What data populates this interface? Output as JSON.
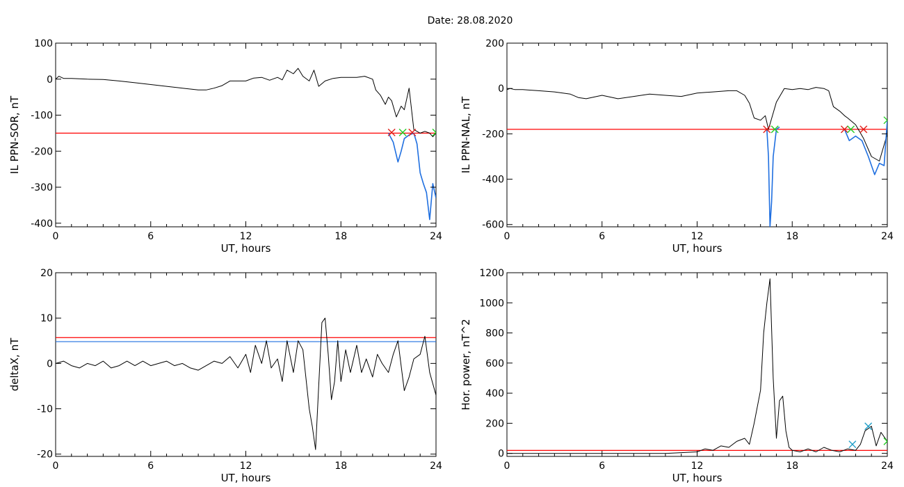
{
  "title": "Date:  28.08.2020",
  "colors": {
    "threshold_red": "#ff0000",
    "threshold_blue": "#1f6fe0",
    "line": "#000000",
    "marker_red": "#e0201a",
    "marker_green": "#22cc22"
  },
  "chart_data": [
    {
      "type": "line",
      "id": "sor",
      "ylabel": "IL PPN-SOR, nT",
      "xlabel": "UT, hours",
      "xlim": [
        0,
        24
      ],
      "ylim": [
        -410,
        100
      ],
      "xticks": [
        0,
        6,
        12,
        18,
        24
      ],
      "yticks": [
        100,
        0,
        -100,
        -200,
        -300,
        -400
      ],
      "threshold": {
        "value": -150,
        "color": "#ff0000"
      },
      "series": [
        {
          "x": [
            0,
            0.2,
            0.5,
            1,
            2,
            3,
            4,
            5,
            6,
            7,
            8,
            9,
            9.5,
            10,
            10.5,
            11,
            11.5,
            12,
            12.5,
            13,
            13.5,
            14,
            14.3,
            14.6,
            15,
            15.3,
            15.6,
            16,
            16.3,
            16.6,
            17,
            17.5,
            18,
            18.5,
            19,
            19.5,
            20,
            20.2,
            20.5,
            20.8,
            21,
            21.2,
            21.5,
            21.8,
            22,
            22.3,
            22.6,
            23,
            23.3,
            23.6,
            23.8,
            24
          ],
          "y": [
            0,
            8,
            2,
            2,
            0,
            -1,
            -5,
            -10,
            -15,
            -20,
            -25,
            -30,
            -30,
            -25,
            -18,
            -5,
            -5,
            -5,
            3,
            5,
            -3,
            5,
            -2,
            25,
            15,
            30,
            8,
            -5,
            25,
            -20,
            -5,
            2,
            5,
            5,
            5,
            8,
            0,
            -30,
            -45,
            -70,
            -50,
            -60,
            -105,
            -75,
            -85,
            -25,
            -140,
            -150,
            -145,
            -150,
            -160,
            -150
          ]
        },
        {
          "x": [
            21,
            21.3,
            21.6,
            21.8,
            22,
            22.3,
            22.6,
            22.8,
            23,
            23.2,
            23.4,
            23.6,
            23.8,
            24
          ],
          "y": [
            -150,
            -175,
            -230,
            -200,
            -165,
            -155,
            -150,
            -180,
            -260,
            -290,
            -315,
            -390,
            -290,
            -330
          ],
          "color": "#1f6fe0"
        }
      ],
      "markers": [
        {
          "x": 21.2,
          "y": -148,
          "color": "#e0201a"
        },
        {
          "x": 21.9,
          "y": -148,
          "color": "#22cc22"
        },
        {
          "x": 22.5,
          "y": -148,
          "color": "#e0201a"
        },
        {
          "x": 24,
          "y": -148,
          "color": "#22cc22"
        }
      ]
    },
    {
      "type": "line",
      "id": "nal",
      "ylabel": "IL PPN-NAL, nT",
      "xlabel": "UT, hours",
      "xlim": [
        0,
        24
      ],
      "ylim": [
        -610,
        200
      ],
      "xticks": [
        0,
        6,
        12,
        18,
        24
      ],
      "yticks": [
        200,
        0,
        -200,
        -400,
        -600
      ],
      "threshold": {
        "value": -180,
        "color": "#ff0000"
      },
      "series": [
        {
          "x": [
            0,
            0.2,
            0.5,
            1,
            2,
            3,
            4,
            4.5,
            5,
            6,
            7,
            8,
            9,
            10,
            11,
            12,
            13,
            14,
            14.5,
            15,
            15.3,
            15.6,
            16,
            16.3,
            16.5,
            17,
            17.5,
            18,
            18.5,
            19,
            19.5,
            20,
            20.3,
            20.6,
            21,
            21.3,
            21.5,
            22,
            22.5,
            23,
            23.5,
            24
          ],
          "y": [
            -5,
            0,
            -5,
            -5,
            -10,
            -15,
            -25,
            -40,
            -45,
            -30,
            -45,
            -35,
            -25,
            -30,
            -35,
            -20,
            -15,
            -10,
            -10,
            -30,
            -65,
            -130,
            -140,
            -120,
            -180,
            -60,
            0,
            -5,
            0,
            -5,
            5,
            0,
            -10,
            -80,
            -100,
            -120,
            -130,
            -160,
            -220,
            -300,
            -320,
            -200
          ]
        },
        {
          "x": [
            16.4,
            16.5,
            16.6,
            16.7,
            16.8,
            17,
            17.2
          ],
          "y": [
            -180,
            -300,
            -610,
            -500,
            -300,
            -180,
            -170
          ],
          "color": "#1f6fe0"
        },
        {
          "x": [
            21.3,
            21.6,
            22,
            22.4,
            22.8,
            23.2,
            23.5,
            23.8,
            24
          ],
          "y": [
            -180,
            -230,
            -210,
            -230,
            -300,
            -380,
            -330,
            -340,
            -140
          ],
          "color": "#1f6fe0"
        }
      ],
      "markers": [
        {
          "x": 16.4,
          "y": -180,
          "color": "#e0201a"
        },
        {
          "x": 16.9,
          "y": -180,
          "color": "#22cc22"
        },
        {
          "x": 21.3,
          "y": -180,
          "color": "#e0201a"
        },
        {
          "x": 21.7,
          "y": -180,
          "color": "#22cc22"
        },
        {
          "x": 22.5,
          "y": -180,
          "color": "#e0201a"
        },
        {
          "x": 24,
          "y": -140,
          "color": "#22cc22"
        }
      ]
    },
    {
      "type": "line",
      "id": "deltax",
      "ylabel": "deltaX, nT",
      "xlabel": "UT, hours",
      "xlim": [
        0,
        24
      ],
      "ylim": [
        -20.5,
        20
      ],
      "xticks": [
        0,
        6,
        12,
        18,
        24
      ],
      "yticks": [
        20,
        10,
        0,
        -10,
        -20
      ],
      "thresholds": [
        {
          "value": 5.7,
          "color": "#ff0000"
        },
        {
          "value": 4.8,
          "color": "#1f6fe0"
        }
      ],
      "series": [
        {
          "x": [
            0,
            0.5,
            1,
            1.5,
            2,
            2.5,
            3,
            3.5,
            4,
            4.5,
            5,
            5.5,
            6,
            6.5,
            7,
            7.5,
            8,
            8.5,
            9,
            9.5,
            10,
            10.5,
            11,
            11.5,
            12,
            12.3,
            12.6,
            13,
            13.3,
            13.6,
            14,
            14.3,
            14.6,
            15,
            15.3,
            15.6,
            16,
            16.2,
            16.4,
            16.6,
            16.8,
            17,
            17.2,
            17.4,
            17.6,
            17.8,
            18,
            18.3,
            18.6,
            19,
            19.3,
            19.6,
            20,
            20.3,
            20.6,
            21,
            21.3,
            21.6,
            22,
            22.3,
            22.6,
            23,
            23.3,
            23.6,
            24
          ],
          "y": [
            0,
            0.5,
            -0.5,
            -1,
            0,
            -0.5,
            0.5,
            -1,
            -0.5,
            0.5,
            -0.5,
            0.5,
            -0.5,
            0,
            0.5,
            -0.5,
            0,
            -1,
            -1.5,
            -0.5,
            0.5,
            0,
            1.5,
            -1,
            2,
            -2,
            4,
            0,
            5,
            -1,
            1,
            -4,
            5,
            -2,
            5,
            3,
            -10,
            -14,
            -19,
            -5,
            9,
            10,
            2,
            -8,
            -4,
            5,
            -4,
            3,
            -2,
            4,
            -2,
            1,
            -3,
            2,
            0,
            -2,
            2,
            5,
            -6,
            -3,
            1,
            2,
            6,
            -2,
            -7
          ]
        }
      ]
    },
    {
      "type": "line",
      "id": "power",
      "ylabel": "Hor. power, nT^2",
      "xlabel": "UT, hours",
      "xlim": [
        0,
        24
      ],
      "ylim": [
        -20,
        1200
      ],
      "xticks": [
        0,
        6,
        12,
        18,
        24
      ],
      "yticks": [
        1200,
        1000,
        800,
        600,
        400,
        200,
        0
      ],
      "threshold": {
        "value": 20,
        "color": "#ff0000"
      },
      "series": [
        {
          "x": [
            0,
            2,
            4,
            6,
            8,
            10,
            11,
            12,
            12.5,
            13,
            13.5,
            14,
            14.5,
            15,
            15.3,
            15.6,
            16,
            16.2,
            16.4,
            16.6,
            16.8,
            17,
            17.2,
            17.4,
            17.6,
            17.8,
            18,
            18.5,
            19,
            19.5,
            20,
            20.5,
            21,
            21.5,
            22,
            22.3,
            22.6,
            23,
            23.3,
            23.6,
            24
          ],
          "y": [
            0,
            0,
            0,
            0,
            0,
            0,
            5,
            10,
            30,
            20,
            50,
            40,
            80,
            100,
            60,
            200,
            420,
            800,
            1000,
            1160,
            500,
            100,
            350,
            380,
            150,
            40,
            20,
            10,
            30,
            10,
            40,
            20,
            10,
            30,
            20,
            60,
            150,
            180,
            50,
            140,
            80
          ]
        }
      ],
      "markers": [
        {
          "x": 21.8,
          "y": 60,
          "color": "#1f9ec8"
        },
        {
          "x": 22.8,
          "y": 180,
          "color": "#1f9ec8"
        },
        {
          "x": 24,
          "y": 80,
          "color": "#22cc22"
        }
      ]
    }
  ]
}
